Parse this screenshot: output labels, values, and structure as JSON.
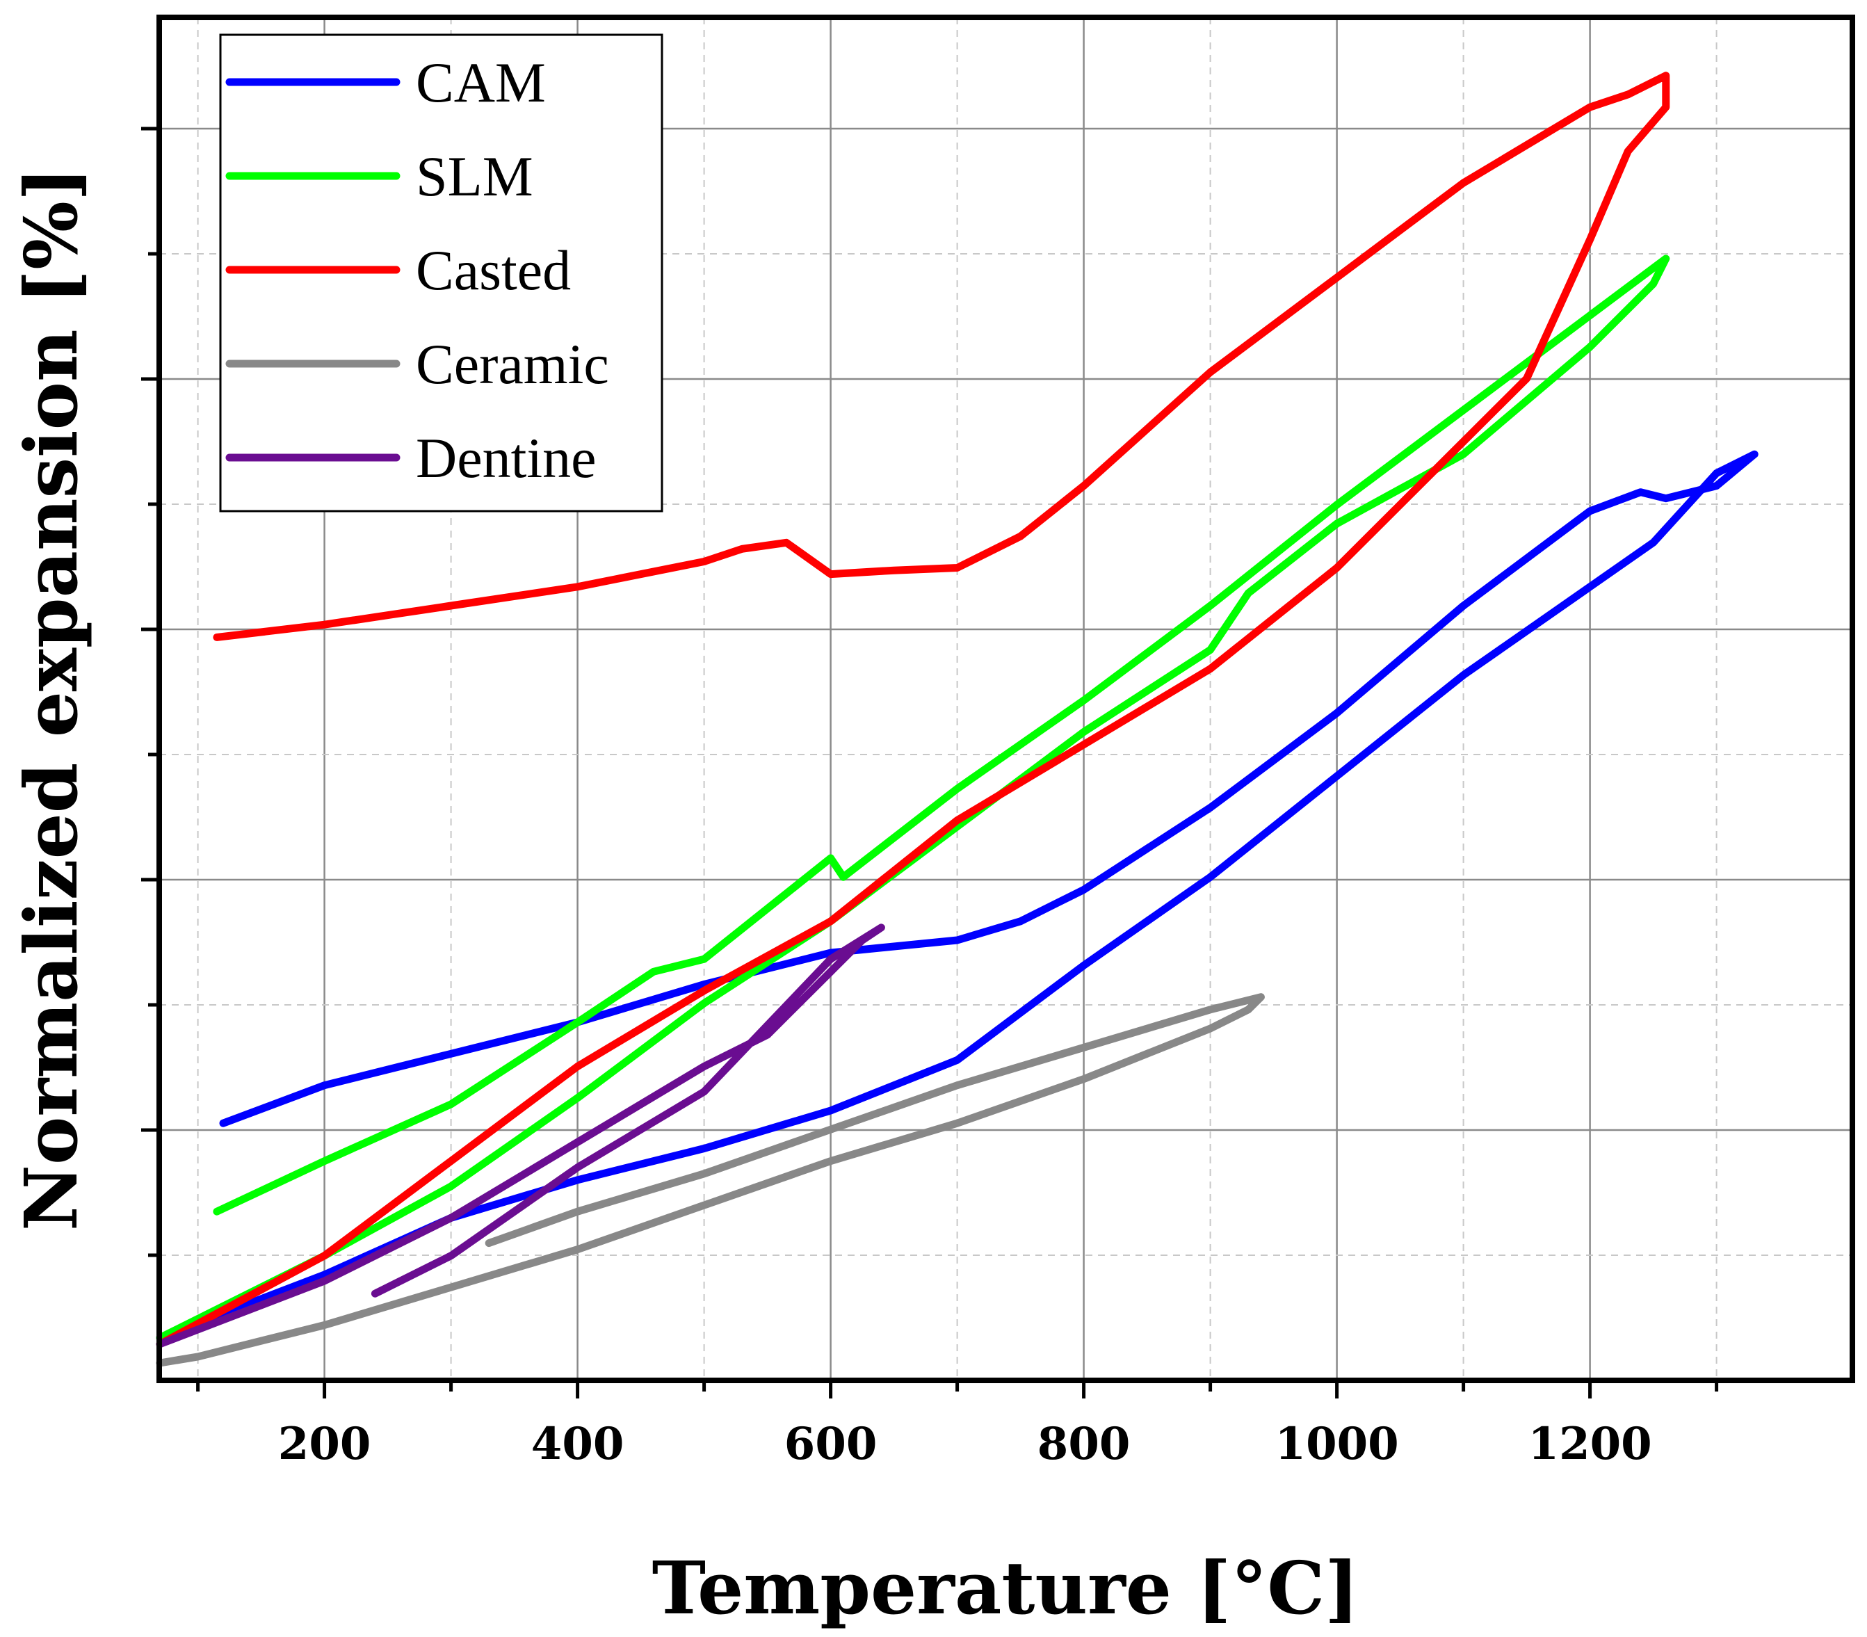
{
  "chart_data": {
    "type": "line",
    "title": "",
    "xlabel": "Temperature [°C]",
    "ylabel": "Normalized expansion [%]",
    "xlim": [
      70,
      1400
    ],
    "ylim": [
      0,
      1.0
    ],
    "xticks": [
      200,
      400,
      600,
      800,
      1000,
      1200
    ],
    "xtick_labels": [
      "200",
      "400",
      "600",
      "800",
      "1000",
      "1200"
    ],
    "y_tick_labels_shown": false,
    "grid": true,
    "legend_position": "top-left",
    "series": [
      {
        "name": "CAM",
        "color": "#0000ff",
        "x": [
          120,
          200,
          300,
          400,
          500,
          560,
          600,
          650,
          700,
          750,
          800,
          900,
          1000,
          1100,
          1200,
          1240,
          1260,
          1300,
          1330,
          1300,
          1250,
          1200,
          1100,
          1000,
          900,
          800,
          700,
          600,
          500,
          400,
          300,
          200,
          70
        ],
        "y": [
          0.19,
          0.22,
          0.245,
          0.27,
          0.3,
          0.315,
          0.325,
          0.33,
          0.335,
          0.35,
          0.375,
          0.44,
          0.515,
          0.6,
          0.675,
          0.69,
          0.685,
          0.695,
          0.72,
          0.705,
          0.65,
          0.615,
          0.545,
          0.465,
          0.385,
          0.315,
          0.24,
          0.2,
          0.17,
          0.145,
          0.115,
          0.07,
          0.02
        ]
      },
      {
        "name": "SLM",
        "color": "#00ff00",
        "x": [
          115,
          200,
          300,
          400,
          460,
          500,
          600,
          610,
          700,
          800,
          900,
          1000,
          1100,
          1200,
          1240,
          1260,
          1250,
          1200,
          1100,
          1000,
          930,
          900,
          800,
          700,
          600,
          500,
          400,
          300,
          200,
          70
        ],
        "y": [
          0.12,
          0.16,
          0.205,
          0.27,
          0.31,
          0.32,
          0.4,
          0.385,
          0.455,
          0.525,
          0.6,
          0.68,
          0.755,
          0.83,
          0.86,
          0.875,
          0.855,
          0.805,
          0.72,
          0.665,
          0.61,
          0.565,
          0.5,
          0.425,
          0.35,
          0.285,
          0.21,
          0.14,
          0.085,
          0.02
        ]
      },
      {
        "name": "Casted",
        "color": "#ff0000",
        "x": [
          115,
          200,
          300,
          400,
          500,
          530,
          565,
          600,
          650,
          700,
          750,
          800,
          900,
          1000,
          1100,
          1200,
          1230,
          1260,
          1260,
          1230,
          1200,
          1150,
          1100,
          1000,
          900,
          800,
          700,
          600,
          500,
          400,
          300,
          200,
          70
        ],
        "y": [
          0.575,
          0.585,
          0.6,
          0.615,
          0.635,
          0.645,
          0.65,
          0.625,
          0.628,
          0.63,
          0.655,
          0.695,
          0.785,
          0.86,
          0.935,
          0.995,
          1.005,
          1.02,
          0.995,
          0.96,
          0.89,
          0.78,
          0.73,
          0.63,
          0.55,
          0.49,
          0.43,
          0.35,
          0.295,
          0.235,
          0.16,
          0.085,
          0.015
        ]
      },
      {
        "name": "Ceramic",
        "color": "#888888",
        "x": [
          330,
          400,
          500,
          600,
          700,
          800,
          900,
          940,
          930,
          900,
          800,
          700,
          600,
          500,
          400,
          300,
          200,
          100,
          70
        ],
        "y": [
          0.095,
          0.12,
          0.15,
          0.185,
          0.22,
          0.25,
          0.28,
          0.29,
          0.28,
          0.265,
          0.225,
          0.19,
          0.16,
          0.125,
          0.09,
          0.06,
          0.03,
          0.005,
          0.0
        ]
      },
      {
        "name": "Dentine",
        "color": "#6a0d91",
        "x": [
          240,
          300,
          400,
          500,
          600,
          640,
          625,
          600,
          550,
          500,
          400,
          300,
          200,
          70
        ],
        "y": [
          0.055,
          0.085,
          0.155,
          0.215,
          0.32,
          0.345,
          0.335,
          0.31,
          0.26,
          0.235,
          0.175,
          0.115,
          0.065,
          0.015
        ]
      }
    ]
  }
}
